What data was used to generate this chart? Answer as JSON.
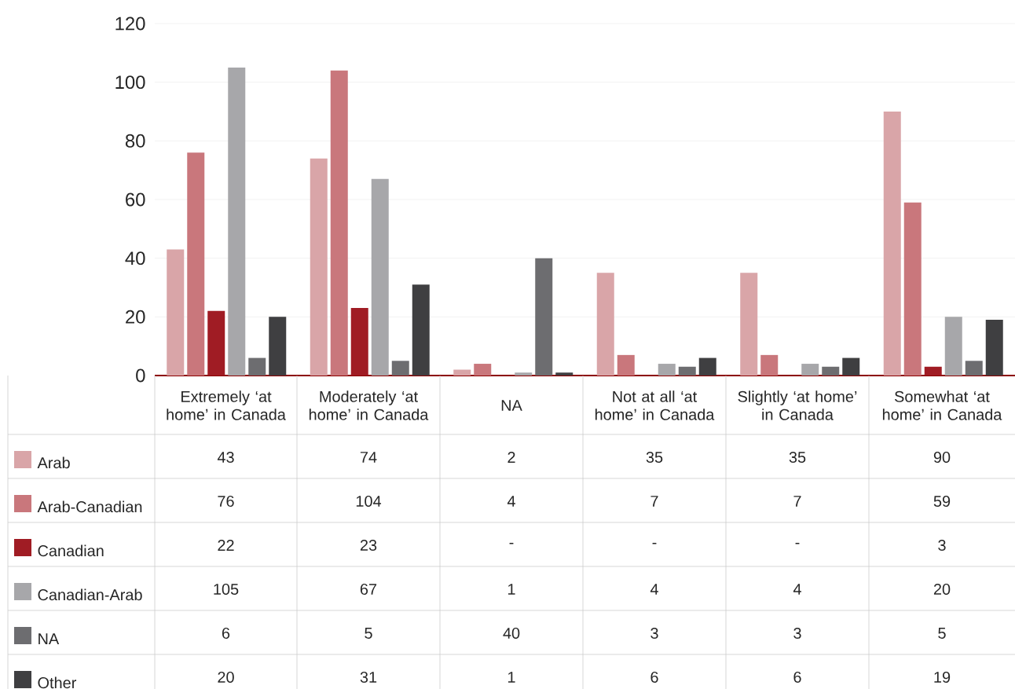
{
  "chart_data": {
    "type": "bar",
    "categories": [
      "Extremely ‘at home’ in Canada",
      "Moderately ‘at home’ in Canada",
      "NA",
      "Not at all ‘at home’ in Canada",
      "Slightly ‘at home’ in Canada",
      "Somewhat ‘at home’ in Canada"
    ],
    "series": [
      {
        "name": "Arab",
        "color": "#d9a5a8",
        "values": [
          43,
          74,
          2,
          35,
          35,
          90
        ],
        "value_labels": [
          "43",
          "74",
          "2",
          "35",
          "35",
          "90"
        ]
      },
      {
        "name": "Arab-Canadian",
        "color": "#c9777c",
        "values": [
          76,
          104,
          4,
          7,
          7,
          59
        ],
        "value_labels": [
          "76",
          "104",
          "4",
          "7",
          "7",
          "59"
        ]
      },
      {
        "name": "Canadian",
        "color": "#a01c24",
        "values": [
          22,
          23,
          null,
          null,
          null,
          3
        ],
        "value_labels": [
          "22",
          "23",
          "-",
          "-",
          "-",
          "3"
        ]
      },
      {
        "name": "Canadian-Arab",
        "color": "#a7a7aa",
        "values": [
          105,
          67,
          1,
          4,
          4,
          20
        ],
        "value_labels": [
          "105",
          "67",
          "1",
          "4",
          "4",
          "20"
        ]
      },
      {
        "name": "NA",
        "color": "#6d6d70",
        "values": [
          6,
          5,
          40,
          3,
          3,
          5
        ],
        "value_labels": [
          "6",
          "5",
          "40",
          "3",
          "3",
          "5"
        ]
      },
      {
        "name": "Other",
        "color": "#3f3f41",
        "values": [
          20,
          31,
          1,
          6,
          6,
          19
        ],
        "value_labels": [
          "20",
          "31",
          "1",
          "6",
          "6",
          "19"
        ]
      }
    ],
    "ylim": [
      0,
      120
    ],
    "yticks": [
      0,
      20,
      40,
      60,
      80,
      100,
      120
    ],
    "grid": "y",
    "legend": "bottom"
  }
}
